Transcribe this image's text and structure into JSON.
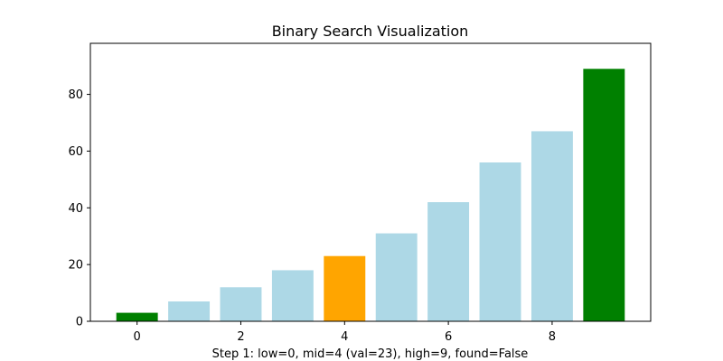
{
  "chart_data": {
    "type": "bar",
    "title": "Binary Search Visualization",
    "xlabel": "Step 1: low=0, mid=4 (val=23), high=9, found=False",
    "ylabel": "",
    "x": [
      0,
      1,
      2,
      3,
      4,
      5,
      6,
      7,
      8,
      9
    ],
    "values": [
      3,
      7,
      12,
      18,
      23,
      31,
      42,
      56,
      67,
      89
    ],
    "bar_roles": [
      "bound",
      "normal",
      "normal",
      "normal",
      "mid",
      "normal",
      "normal",
      "normal",
      "normal",
      "bound"
    ],
    "role_colors": {
      "normal": "#add8e6",
      "mid": "#ffa500",
      "bound": "#008000"
    },
    "xlim": [
      -0.9,
      9.9
    ],
    "ylim": [
      0,
      98
    ],
    "xticks": [
      0,
      2,
      4,
      6,
      8
    ],
    "yticks": [
      0,
      20,
      40,
      60,
      80
    ],
    "grid": false,
    "legend": "none"
  }
}
